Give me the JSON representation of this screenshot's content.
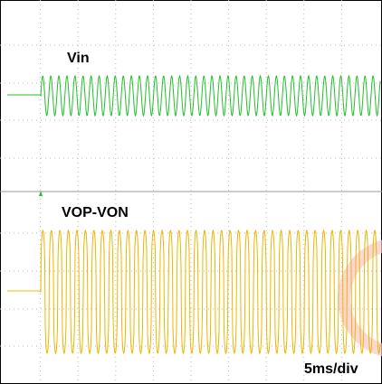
{
  "traces": [
    {
      "label": "Vin"
    },
    {
      "label": "VOP-VON"
    }
  ],
  "timebase": "5ms/div"
}
